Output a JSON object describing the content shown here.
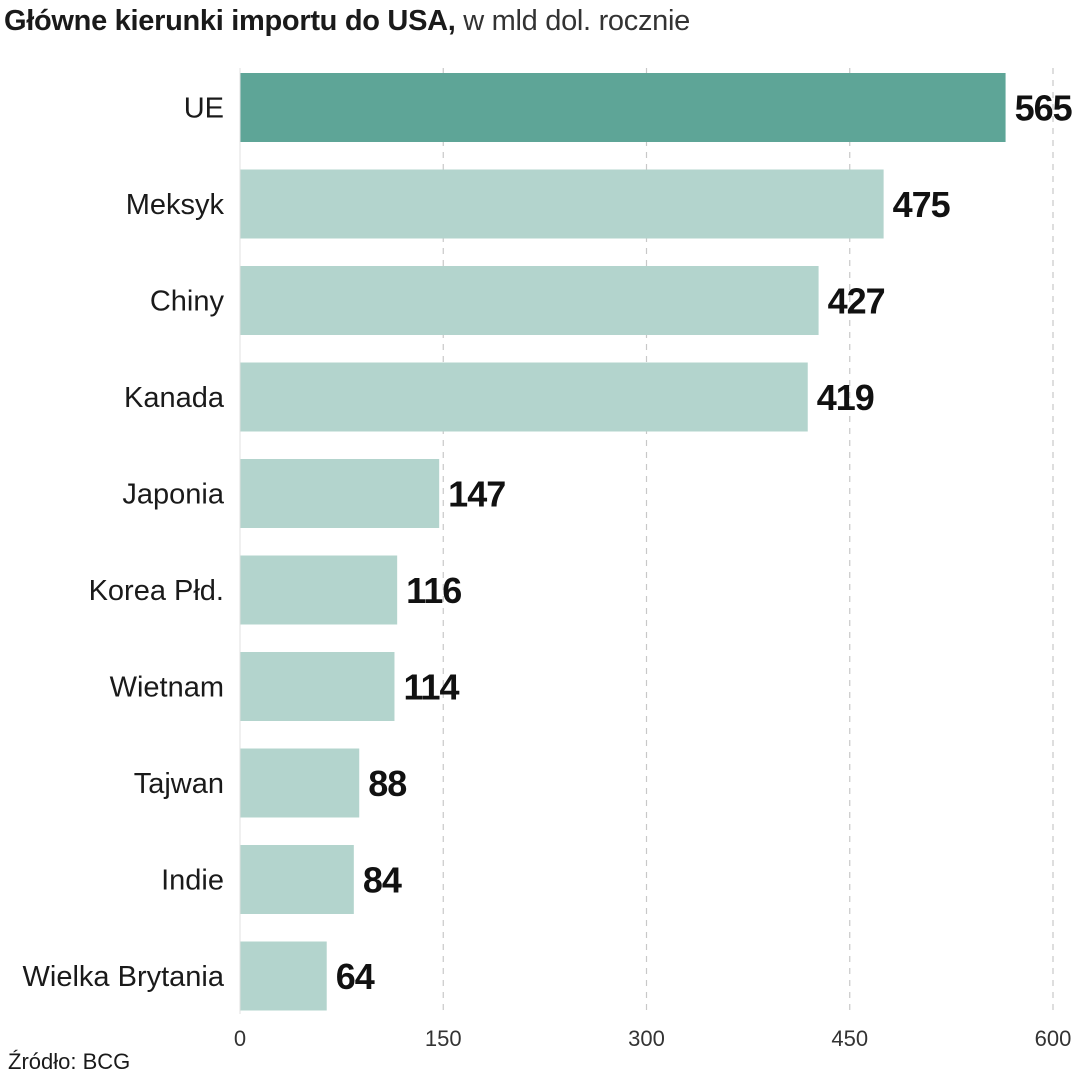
{
  "title": {
    "bold": "Główne kierunki importu do USA,",
    "light": " w mld dol. rocznie"
  },
  "source": "Źródło: BCG",
  "colors": {
    "highlight": "#5ea597",
    "bar": "#b3d4cd",
    "grid": "#c8c8c8",
    "text": "#1a1a1a"
  },
  "chart_data": {
    "type": "bar",
    "orientation": "horizontal",
    "title": "Główne kierunki importu do USA, w mld dol. rocznie",
    "categories": [
      "UE",
      "Meksyk",
      "Chiny",
      "Kanada",
      "Japonia",
      "Korea Płd.",
      "Wietnam",
      "Tajwan",
      "Indie",
      "Wielka Brytania"
    ],
    "values": [
      565,
      475,
      427,
      419,
      147,
      116,
      114,
      88,
      84,
      64
    ],
    "value_labels": [
      "565",
      "475",
      "427",
      "419",
      "147",
      "116",
      "114",
      "88",
      "84",
      "64"
    ],
    "highlight": [
      "UE"
    ],
    "xlim": [
      0,
      600
    ],
    "xticks": [
      0,
      150,
      300,
      450,
      600
    ],
    "xtick_labels": [
      "0",
      "150",
      "300",
      "450",
      "600"
    ],
    "grid": "vertical dashed"
  }
}
